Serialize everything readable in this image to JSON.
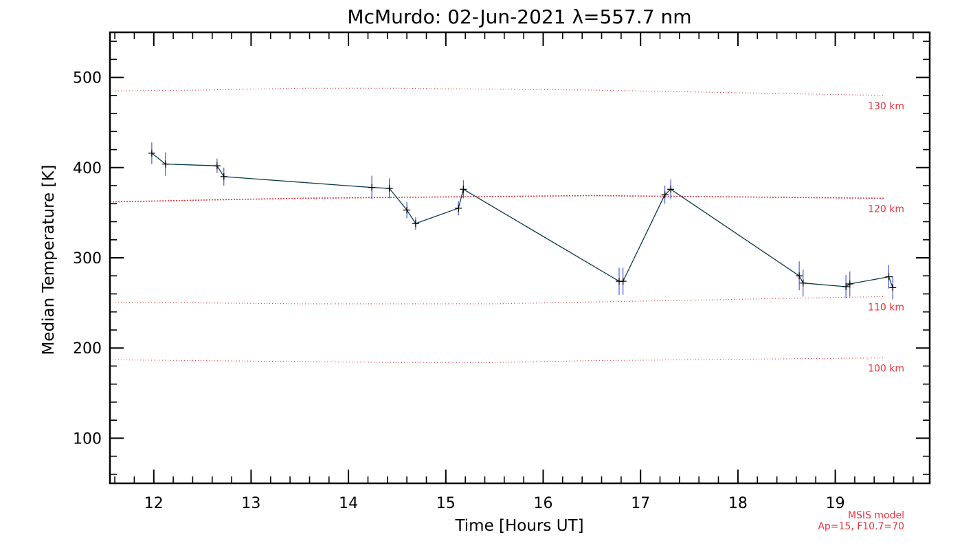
{
  "chart_data": {
    "type": "line",
    "title": "McMurdo: 02-Jun-2021 λ=557.7 nm",
    "xlabel": "Time [Hours UT]",
    "ylabel": "Median Temperature [K]",
    "xlim": [
      11.55,
      19.97
    ],
    "ylim": [
      50,
      550
    ],
    "xticks": [
      12,
      13,
      14,
      15,
      16,
      17,
      18,
      19
    ],
    "xtick_labels": [
      "12",
      "13",
      "14",
      "15",
      "16",
      "17",
      "18",
      "19"
    ],
    "yticks": [
      100,
      200,
      300,
      400,
      500
    ],
    "ytick_labels": [
      "100",
      "200",
      "300",
      "400",
      "500"
    ],
    "series": [
      {
        "name": "Median Temperature",
        "color": "#0a3a50",
        "errorbar_color": "#2233dd",
        "x": [
          11.98,
          12.12,
          12.65,
          12.72,
          14.24,
          14.42,
          14.6,
          14.69,
          15.13,
          15.18,
          16.78,
          16.82,
          17.25,
          17.31,
          18.63,
          18.67,
          19.11,
          19.15,
          19.55,
          19.59
        ],
        "y": [
          416,
          404,
          402,
          390,
          378,
          377,
          353,
          338,
          355,
          376,
          274,
          274,
          370,
          376,
          280,
          272,
          268,
          271,
          279,
          267
        ],
        "err": [
          12,
          13,
          8,
          10,
          13,
          11,
          9,
          7,
          8,
          10,
          15,
          15,
          10,
          11,
          16,
          15,
          13,
          14,
          13,
          13
        ]
      }
    ],
    "msis_reference": {
      "color": "#e8323c",
      "lines": [
        {
          "label": "130 km",
          "x": [
            11.55,
            12.5,
            13.5,
            14.5,
            15.5,
            16.5,
            17.5,
            18.5,
            19.5
          ],
          "y": [
            485,
            486,
            488,
            488,
            487,
            486,
            484,
            482,
            480
          ]
        },
        {
          "label": "120 km",
          "x": [
            11.55,
            12.5,
            13.5,
            14.5,
            15.5,
            16.5,
            17.5,
            18.5,
            19.5
          ],
          "y": [
            362,
            364,
            366,
            367,
            368,
            369,
            368,
            367,
            366
          ]
        },
        {
          "label": "110 km",
          "x": [
            11.55,
            12.5,
            13.5,
            14.5,
            15.5,
            16.5,
            17.5,
            18.5,
            19.5
          ],
          "y": [
            251,
            250,
            249,
            249,
            249,
            251,
            253,
            255,
            257
          ]
        },
        {
          "label": "100 km",
          "x": [
            11.55,
            12.5,
            13.5,
            14.5,
            15.5,
            16.5,
            17.5,
            18.5,
            19.5
          ],
          "y": [
            187,
            186,
            185,
            184,
            184,
            186,
            187,
            188,
            189
          ]
        }
      ],
      "note_line1": "MSIS model",
      "note_line2": "Ap=15, F10.7=70"
    }
  }
}
